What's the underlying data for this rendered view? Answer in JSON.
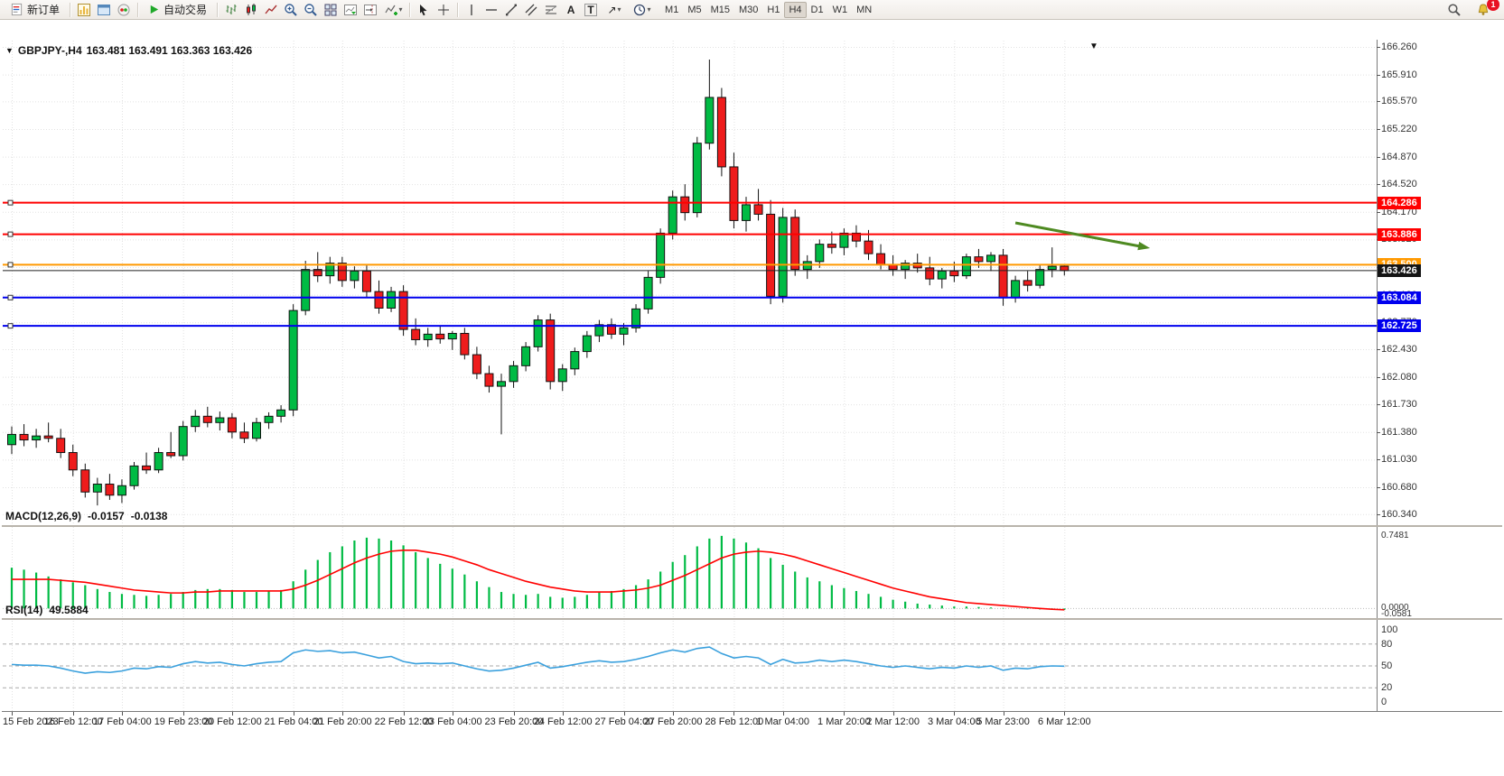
{
  "toolbar": {
    "new_order_label": "新订单",
    "auto_trading_label": "自动交易",
    "timeframes": [
      "M1",
      "M5",
      "M15",
      "M30",
      "H1",
      "H4",
      "D1",
      "W1",
      "MN"
    ],
    "active_timeframe": "H4",
    "notification_badge": "1",
    "caret": "▾",
    "text_tool_label": "A",
    "label_tool_label": "T",
    "arrow_tool_glyph": "↗",
    "icons": [
      "new-order-icon",
      "new-chart-icon",
      "profiles-icon",
      "community-icon",
      "auto-trading-play-icon",
      "bars-chart-icon",
      "candles-chart-icon",
      "line-chart-icon",
      "zoom-in-icon",
      "zoom-out-icon",
      "tile-windows-icon",
      "auto-scroll-icon",
      "chart-shift-icon",
      "indicators-icon",
      "cursor-icon",
      "crosshair-icon",
      "vertical-line-icon",
      "horizontal-line-icon",
      "trendline-icon",
      "channel-icon",
      "fibonacci-icon",
      "text-icon",
      "label-icon",
      "arrows-icon",
      "clock-icon",
      "search-icon",
      "bell-icon"
    ]
  },
  "chart": {
    "symbol_period": "GBPJPY-,H4",
    "ohlc": "163.481 163.491 163.363 163.426",
    "collapse_arrow": "▼",
    "shift_marker": "▼"
  },
  "indicators": {
    "macd": {
      "name": "MACD(12,26,9)",
      "main_value": "-0.0157",
      "signal_value": "-0.0138"
    },
    "rsi": {
      "name": "RSI(14)",
      "value": "49.5884"
    }
  },
  "chart_data": [
    {
      "type": "candlestick",
      "title": "GBPJPY-,H4",
      "ylim": [
        160.2,
        166.34
      ],
      "grid": true,
      "y_ticks": [
        166.26,
        165.91,
        165.57,
        165.22,
        164.87,
        164.52,
        164.17,
        163.82,
        163.47,
        163.12,
        162.77,
        162.43,
        162.08,
        161.73,
        161.38,
        161.03,
        160.68,
        160.34
      ],
      "x_ticks": [
        {
          "i": 0,
          "label": "15 Feb 2023"
        },
        {
          "i": 5,
          "label": "16 Feb 12:00"
        },
        {
          "i": 9,
          "label": "17 Feb 04:00"
        },
        {
          "i": 14,
          "label": "19 Feb 23:00"
        },
        {
          "i": 18,
          "label": "20 Feb 12:00"
        },
        {
          "i": 23,
          "label": "21 Feb 04:00"
        },
        {
          "i": 27,
          "label": "21 Feb 20:00"
        },
        {
          "i": 32,
          "label": "22 Feb 12:00"
        },
        {
          "i": 36,
          "label": "23 Feb 04:00"
        },
        {
          "i": 41,
          "label": "23 Feb 20:00"
        },
        {
          "i": 45,
          "label": "24 Feb 12:00"
        },
        {
          "i": 50,
          "label": "27 Feb 04:00"
        },
        {
          "i": 54,
          "label": "27 Feb 20:00"
        },
        {
          "i": 59,
          "label": "28 Feb 12:00"
        },
        {
          "i": 63,
          "label": "1 Mar 04:00"
        },
        {
          "i": 68,
          "label": "1 Mar 20:00"
        },
        {
          "i": 72,
          "label": "2 Mar 12:00"
        },
        {
          "i": 77,
          "label": "3 Mar 04:00"
        },
        {
          "i": 81,
          "label": "5 Mar 23:00"
        },
        {
          "i": 86,
          "label": "6 Mar 12:00"
        }
      ],
      "hlines": [
        {
          "value": 164.286,
          "tag": "164.286",
          "color": "#ff0000"
        },
        {
          "value": 163.886,
          "tag": "163.886",
          "color": "#ff0000"
        },
        {
          "value": 163.5,
          "tag": "163.500",
          "color": "#ff9900"
        },
        {
          "value": 163.084,
          "tag": "163.084",
          "color": "#0000ee"
        },
        {
          "value": 162.725,
          "tag": "162.725",
          "color": "#0000ee"
        }
      ],
      "price_line": {
        "value": 163.426,
        "tag": "163.426",
        "color": "#222222",
        "tag_bg": "#141414"
      },
      "arrow": {
        "i1": 82,
        "p1": 164.03,
        "i2": 93,
        "p2": 163.71,
        "color": "#4e8a21"
      },
      "colors": {
        "up": "#00bb44",
        "down": "#ee1c1c",
        "wick": "#111111"
      },
      "candles": [
        [
          161.22,
          161.45,
          161.1,
          161.35
        ],
        [
          161.35,
          161.48,
          161.2,
          161.28
        ],
        [
          161.28,
          161.42,
          161.18,
          161.33
        ],
        [
          161.33,
          161.5,
          161.25,
          161.3
        ],
        [
          161.3,
          161.42,
          161.05,
          161.12
        ],
        [
          161.12,
          161.22,
          160.82,
          160.9
        ],
        [
          160.9,
          160.98,
          160.55,
          160.62
        ],
        [
          160.62,
          160.8,
          160.45,
          160.72
        ],
        [
          160.72,
          160.85,
          160.52,
          160.58
        ],
        [
          160.58,
          160.78,
          160.48,
          160.7
        ],
        [
          160.7,
          161.0,
          160.65,
          160.95
        ],
        [
          160.95,
          161.12,
          160.85,
          160.9
        ],
        [
          160.9,
          161.18,
          160.86,
          161.12
        ],
        [
          161.12,
          161.38,
          161.05,
          161.08
        ],
        [
          161.08,
          161.52,
          161.02,
          161.45
        ],
        [
          161.45,
          161.66,
          161.38,
          161.58
        ],
        [
          161.58,
          161.7,
          161.44,
          161.5
        ],
        [
          161.5,
          161.64,
          161.4,
          161.56
        ],
        [
          161.56,
          161.62,
          161.3,
          161.38
        ],
        [
          161.38,
          161.5,
          161.24,
          161.3
        ],
        [
          161.3,
          161.56,
          161.26,
          161.5
        ],
        [
          161.5,
          161.63,
          161.42,
          161.58
        ],
        [
          161.58,
          161.72,
          161.5,
          161.66
        ],
        [
          161.66,
          163.0,
          161.58,
          162.92
        ],
        [
          162.92,
          163.55,
          162.86,
          163.44
        ],
        [
          163.44,
          163.66,
          163.28,
          163.36
        ],
        [
          163.36,
          163.6,
          163.26,
          163.52
        ],
        [
          163.52,
          163.6,
          163.22,
          163.3
        ],
        [
          163.3,
          163.48,
          163.2,
          163.42
        ],
        [
          163.42,
          163.5,
          163.08,
          163.16
        ],
        [
          163.16,
          163.3,
          162.88,
          162.95
        ],
        [
          162.95,
          163.22,
          162.9,
          163.16
        ],
        [
          163.16,
          163.24,
          162.6,
          162.68
        ],
        [
          162.68,
          162.82,
          162.48,
          162.55
        ],
        [
          162.55,
          162.7,
          162.46,
          162.62
        ],
        [
          162.62,
          162.72,
          162.5,
          162.56
        ],
        [
          162.56,
          162.66,
          162.42,
          162.63
        ],
        [
          162.63,
          162.7,
          162.3,
          162.36
        ],
        [
          162.36,
          162.46,
          162.05,
          162.12
        ],
        [
          162.12,
          162.22,
          161.88,
          161.96
        ],
        [
          161.96,
          162.12,
          161.35,
          162.02
        ],
        [
          162.02,
          162.28,
          161.94,
          162.22
        ],
        [
          162.22,
          162.52,
          162.15,
          162.46
        ],
        [
          162.46,
          162.86,
          162.4,
          162.8
        ],
        [
          162.8,
          162.88,
          161.92,
          162.02
        ],
        [
          162.02,
          162.24,
          161.9,
          162.18
        ],
        [
          162.18,
          162.45,
          162.1,
          162.4
        ],
        [
          162.4,
          162.66,
          162.32,
          162.6
        ],
        [
          162.6,
          162.8,
          162.52,
          162.74
        ],
        [
          162.74,
          162.82,
          162.56,
          162.62
        ],
        [
          162.62,
          162.76,
          162.48,
          162.7
        ],
        [
          162.7,
          163.0,
          162.64,
          162.94
        ],
        [
          162.94,
          163.42,
          162.88,
          163.34
        ],
        [
          163.34,
          163.96,
          163.26,
          163.9
        ],
        [
          163.9,
          164.44,
          163.82,
          164.36
        ],
        [
          164.36,
          164.52,
          164.06,
          164.16
        ],
        [
          164.16,
          165.12,
          164.1,
          165.04
        ],
        [
          165.04,
          166.1,
          164.96,
          165.62
        ],
        [
          165.62,
          165.74,
          164.62,
          164.74
        ],
        [
          164.74,
          164.92,
          163.96,
          164.06
        ],
        [
          164.06,
          164.36,
          163.92,
          164.26
        ],
        [
          164.26,
          164.46,
          164.06,
          164.14
        ],
        [
          164.14,
          164.32,
          163.0,
          163.1
        ],
        [
          163.1,
          164.22,
          163.02,
          164.1
        ],
        [
          164.1,
          164.2,
          163.36,
          163.44
        ],
        [
          163.44,
          163.62,
          163.32,
          163.54
        ],
        [
          163.54,
          163.82,
          163.46,
          163.76
        ],
        [
          163.76,
          163.92,
          163.64,
          163.72
        ],
        [
          163.72,
          163.96,
          163.62,
          163.9
        ],
        [
          163.9,
          164.0,
          163.72,
          163.8
        ],
        [
          163.8,
          163.94,
          163.56,
          163.64
        ],
        [
          163.64,
          163.76,
          163.44,
          163.5
        ],
        [
          163.5,
          163.62,
          163.36,
          163.44
        ],
        [
          163.44,
          163.56,
          163.32,
          163.52
        ],
        [
          163.52,
          163.64,
          163.4,
          163.46
        ],
        [
          163.46,
          163.6,
          163.24,
          163.32
        ],
        [
          163.32,
          163.46,
          163.2,
          163.42
        ],
        [
          163.42,
          163.54,
          163.28,
          163.36
        ],
        [
          163.36,
          163.64,
          163.32,
          163.6
        ],
        [
          163.6,
          163.7,
          163.46,
          163.54
        ],
        [
          163.54,
          163.66,
          163.42,
          163.62
        ],
        [
          163.62,
          163.7,
          162.98,
          163.08
        ],
        [
          163.08,
          163.36,
          163.02,
          163.3
        ],
        [
          163.3,
          163.42,
          163.16,
          163.24
        ],
        [
          163.24,
          163.5,
          163.2,
          163.44
        ],
        [
          163.44,
          163.72,
          163.34,
          163.48
        ],
        [
          163.481,
          163.491,
          163.363,
          163.426
        ]
      ]
    },
    {
      "type": "bar",
      "title": "MACD(12,26,9)",
      "ylim": [
        -0.09,
        0.84
      ],
      "y_ticks": [
        0.7481,
        0,
        -0.0581
      ],
      "colors": {
        "histogram": "#00bb44",
        "signal": "#ff0000"
      },
      "histogram": [
        0.42,
        0.4,
        0.37,
        0.33,
        0.3,
        0.27,
        0.24,
        0.2,
        0.17,
        0.15,
        0.14,
        0.13,
        0.14,
        0.15,
        0.17,
        0.19,
        0.2,
        0.2,
        0.19,
        0.17,
        0.17,
        0.18,
        0.19,
        0.28,
        0.4,
        0.5,
        0.58,
        0.64,
        0.7,
        0.73,
        0.72,
        0.7,
        0.65,
        0.58,
        0.52,
        0.46,
        0.41,
        0.35,
        0.28,
        0.22,
        0.17,
        0.15,
        0.14,
        0.15,
        0.12,
        0.11,
        0.12,
        0.14,
        0.17,
        0.18,
        0.2,
        0.24,
        0.3,
        0.38,
        0.48,
        0.55,
        0.64,
        0.72,
        0.748,
        0.72,
        0.68,
        0.62,
        0.52,
        0.45,
        0.38,
        0.32,
        0.28,
        0.24,
        0.21,
        0.18,
        0.15,
        0.12,
        0.09,
        0.07,
        0.05,
        0.04,
        0.03,
        0.02,
        0.02,
        0.015,
        0.01,
        0.005,
        0.0,
        -0.005,
        -0.01,
        -0.012,
        -0.0157
      ],
      "signal": [
        0.3,
        0.3,
        0.3,
        0.3,
        0.29,
        0.28,
        0.27,
        0.25,
        0.23,
        0.21,
        0.19,
        0.18,
        0.17,
        0.16,
        0.16,
        0.17,
        0.17,
        0.18,
        0.18,
        0.18,
        0.18,
        0.18,
        0.18,
        0.2,
        0.24,
        0.29,
        0.35,
        0.41,
        0.47,
        0.52,
        0.56,
        0.59,
        0.6,
        0.6,
        0.58,
        0.56,
        0.53,
        0.49,
        0.45,
        0.4,
        0.36,
        0.32,
        0.28,
        0.25,
        0.22,
        0.2,
        0.18,
        0.17,
        0.17,
        0.17,
        0.18,
        0.19,
        0.21,
        0.24,
        0.29,
        0.34,
        0.4,
        0.46,
        0.52,
        0.56,
        0.58,
        0.59,
        0.58,
        0.56,
        0.53,
        0.49,
        0.45,
        0.41,
        0.37,
        0.33,
        0.29,
        0.25,
        0.21,
        0.18,
        0.15,
        0.12,
        0.1,
        0.08,
        0.06,
        0.05,
        0.04,
        0.03,
        0.02,
        0.01,
        0.0,
        -0.008,
        -0.0138
      ]
    },
    {
      "type": "line",
      "title": "RSI(14)",
      "ylim": [
        0,
        100
      ],
      "y_ticks": [
        100,
        80,
        50,
        20,
        0
      ],
      "levels": [
        80,
        50,
        20
      ],
      "color": "#3aa0dd",
      "values": [
        52,
        51,
        51,
        50,
        47,
        43,
        40,
        42,
        41,
        43,
        47,
        46,
        49,
        48,
        53,
        56,
        54,
        55,
        52,
        50,
        53,
        55,
        56,
        68,
        72,
        70,
        71,
        68,
        69,
        65,
        61,
        63,
        56,
        53,
        54,
        53,
        54,
        50,
        46,
        43,
        44,
        47,
        51,
        55,
        47,
        49,
        52,
        55,
        57,
        55,
        56,
        59,
        63,
        68,
        72,
        69,
        74,
        76,
        67,
        61,
        63,
        61,
        52,
        59,
        54,
        55,
        58,
        56,
        58,
        56,
        53,
        50,
        48,
        50,
        48,
        46,
        48,
        47,
        50,
        48,
        50,
        44,
        47,
        46,
        49,
        50,
        49.5884
      ]
    }
  ]
}
